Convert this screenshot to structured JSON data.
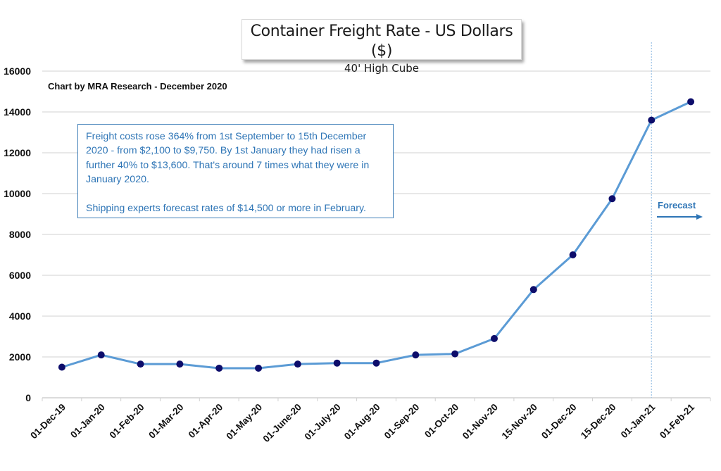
{
  "chart_data": {
    "type": "line",
    "title": "Container Freight Rate - US Dollars ($)",
    "subtitle": "40' High Cube",
    "credit": "Chart by MRA Research - December 2020",
    "xlabel": "",
    "ylabel": "",
    "ylim": [
      0,
      16000
    ],
    "yticks": [
      0,
      2000,
      4000,
      6000,
      8000,
      10000,
      12000,
      14000,
      16000
    ],
    "grid": true,
    "legend": "none",
    "categories": [
      "01-Dec-19",
      "01-Jan-20",
      "01-Feb-20",
      "01-Mar-20",
      "01-Apr-20",
      "01-May-20",
      "01-June-20",
      "01-July-20",
      "01-Aug-20",
      "01-Sep-20",
      "01-Oct-20",
      "01-Nov-20",
      "15-Nov-20",
      "01-Dec-20",
      "15-Dec-20",
      "01-Jan-21",
      "01-Feb-21"
    ],
    "series": [
      {
        "name": "Container Freight Rate",
        "values": [
          1500,
          2100,
          1650,
          1650,
          1450,
          1450,
          1650,
          1700,
          1700,
          2100,
          2150,
          2900,
          5300,
          7000,
          9750,
          13600,
          14500
        ],
        "line_color": "#5b9bd5",
        "marker_color": "#0d0d6b"
      }
    ],
    "forecast_divider_category": "01-Jan-21",
    "annotations": {
      "note_paragraphs": [
        "Freight costs rose 364% from 1st September to 15th December 2020 - from $2,100 to $9,750. By 1st January they had risen a further 40% to $13,600. That's around 7 times what they were in January 2020.",
        "Shipping experts forecast rates of $14,500 or more in February."
      ],
      "forecast_label": "Forecast",
      "forecast_arrow": "right-arrow"
    },
    "colors": {
      "accent": "#2e75b6",
      "gridline": "#d9d9d9",
      "axis": "#d0d0d0"
    }
  }
}
